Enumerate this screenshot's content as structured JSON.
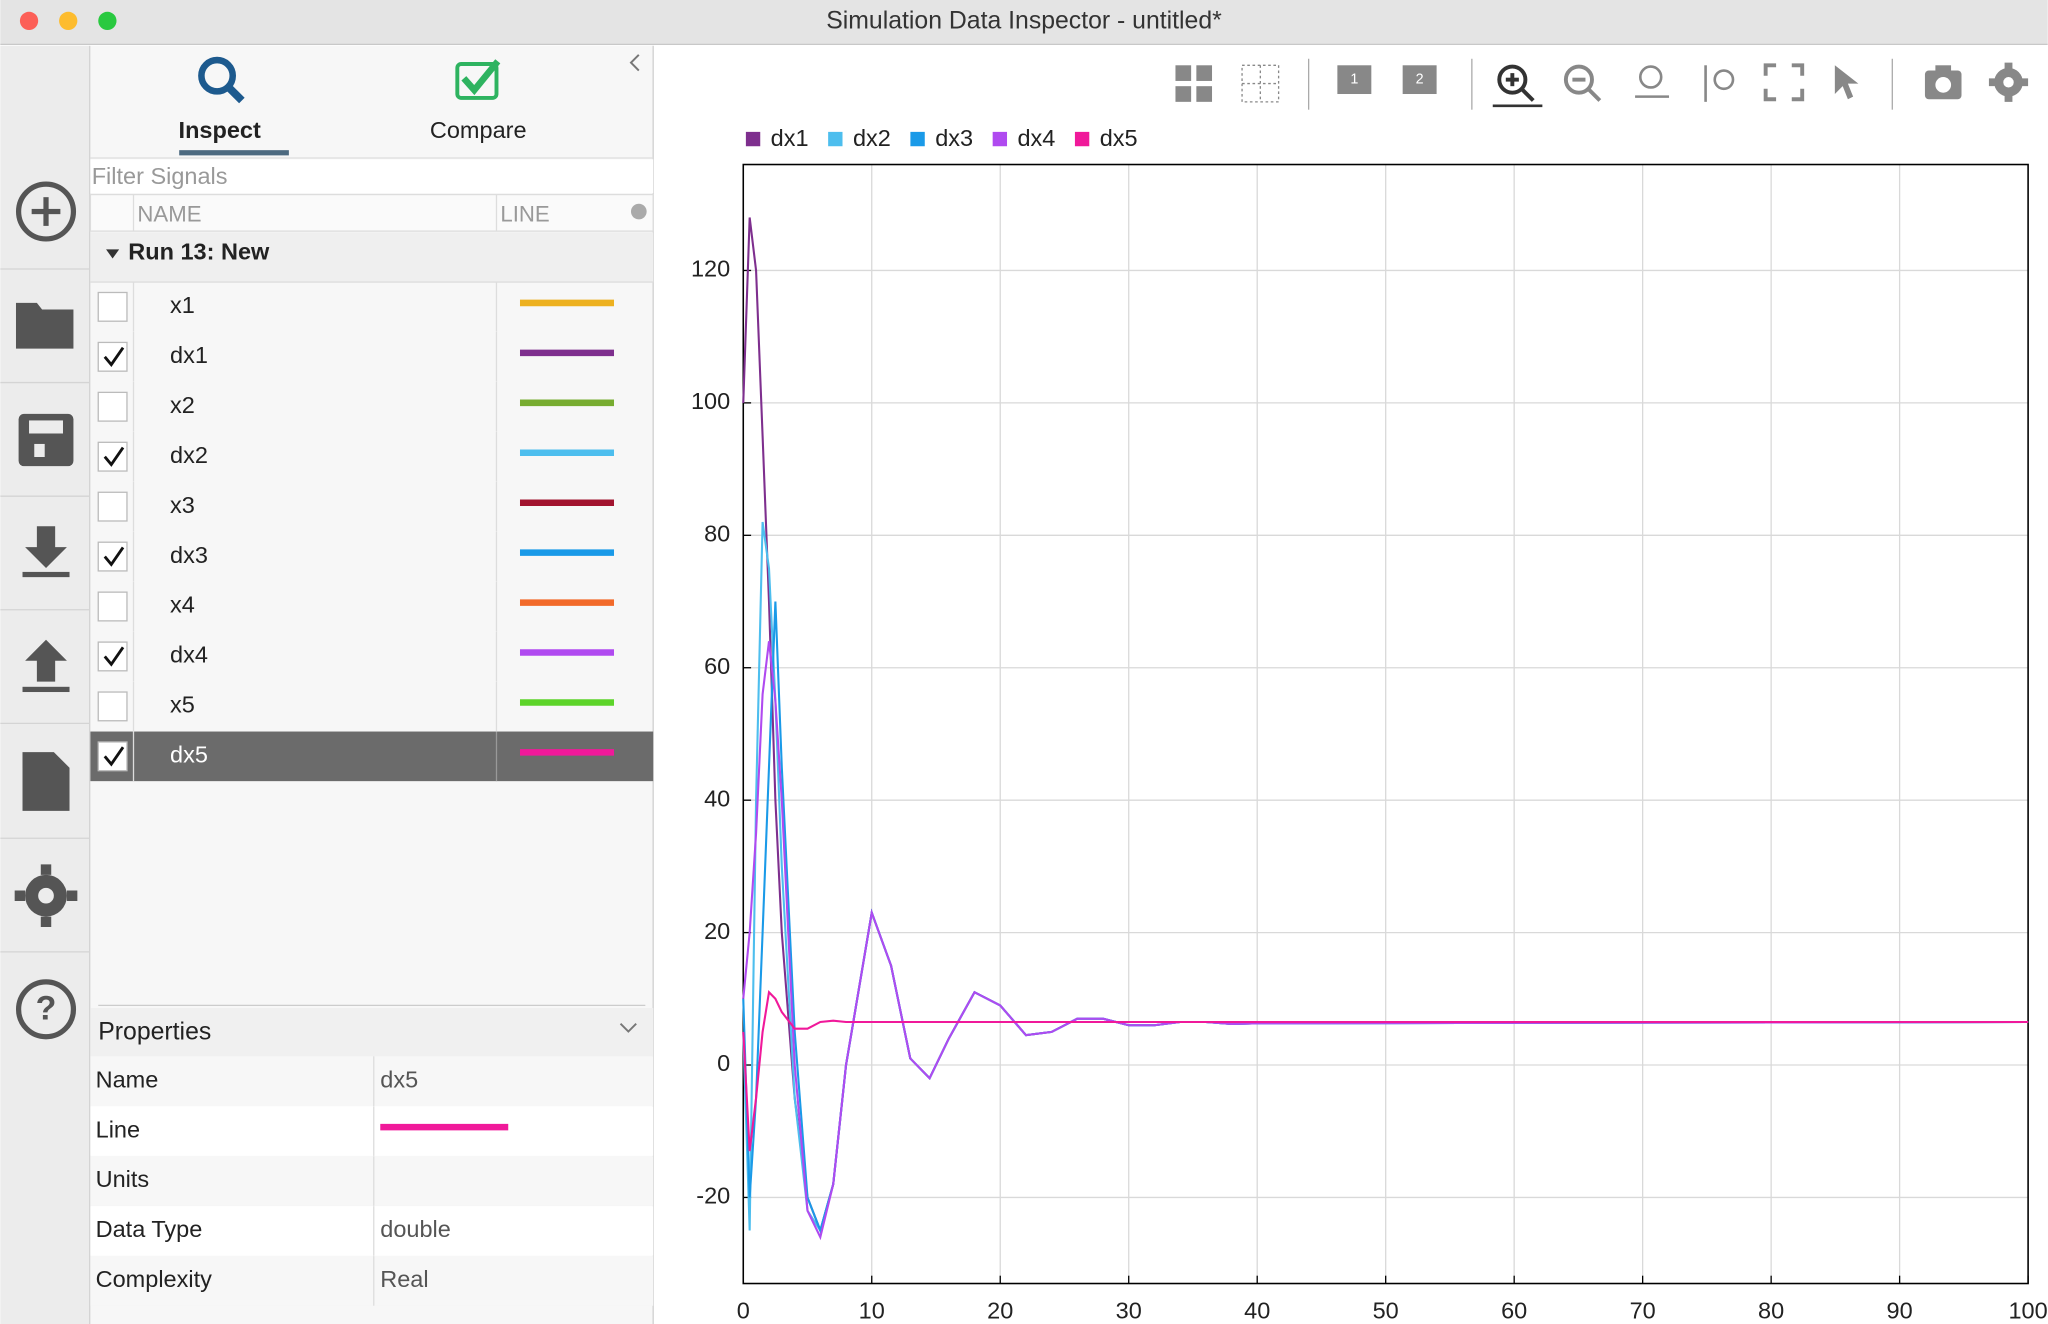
{
  "window": {
    "title": "Simulation Data Inspector - untitled*"
  },
  "tabs": [
    "Inspect",
    "Compare"
  ],
  "filter_placeholder": "Filter Signals",
  "columns": [
    "NAME",
    "LINE"
  ],
  "run": "Run 13: New",
  "signals": [
    {
      "name": "x1",
      "color": "#edb120",
      "checked": false
    },
    {
      "name": "dx1",
      "color": "#7e2f8e",
      "checked": true
    },
    {
      "name": "x2",
      "color": "#77ac30",
      "checked": false
    },
    {
      "name": "dx2",
      "color": "#4dbeee",
      "checked": true
    },
    {
      "name": "x3",
      "color": "#a2142f",
      "checked": false
    },
    {
      "name": "dx3",
      "color": "#1a9ae8",
      "checked": true
    },
    {
      "name": "x4",
      "color": "#f26a2a",
      "checked": false
    },
    {
      "name": "dx4",
      "color": "#b04af0",
      "checked": true
    },
    {
      "name": "x5",
      "color": "#5dd42a",
      "checked": false
    },
    {
      "name": "dx5",
      "color": "#f0199a",
      "checked": true,
      "selected": true
    }
  ],
  "properties": {
    "title": "Properties",
    "rows": [
      {
        "label": "Name",
        "value": "dx5"
      },
      {
        "label": "Line",
        "color": "#f0199a"
      },
      {
        "label": "Units"
      },
      {
        "label": "Data Type",
        "value": "double"
      },
      {
        "label": "Complexity",
        "value": "Real"
      }
    ]
  },
  "chart_data": {
    "type": "line",
    "x": [
      0,
      0.5,
      1,
      1.5,
      2,
      2.5,
      3,
      4,
      5,
      6,
      7,
      8,
      10,
      11.5,
      13,
      14.5,
      16,
      18,
      20,
      22,
      24,
      26,
      28,
      30,
      32,
      34,
      36,
      38,
      40,
      100
    ],
    "series": [
      {
        "name": "dx1",
        "color": "#7e2f8e",
        "values": [
          100,
          128,
          120,
          95,
          70,
          40,
          20,
          -5,
          -20,
          -25,
          -18,
          0,
          23,
          15,
          1,
          -2,
          4,
          11,
          9,
          4.5,
          5,
          7,
          7,
          6,
          6,
          6.5,
          6.5,
          6.2,
          6.3,
          6.5
        ]
      },
      {
        "name": "dx2",
        "color": "#4dbeee",
        "values": [
          5,
          -25,
          40,
          82,
          75,
          55,
          30,
          -5,
          -22,
          -25,
          -18,
          0,
          23,
          15,
          1,
          -2,
          4,
          11,
          9,
          4.5,
          5,
          7,
          7,
          6,
          6,
          6.5,
          6.5,
          6.2,
          6.3,
          6.5
        ]
      },
      {
        "name": "dx3",
        "color": "#1a9ae8",
        "values": [
          10,
          -20,
          -5,
          20,
          45,
          70,
          45,
          5,
          -20,
          -25,
          -18,
          0,
          23,
          15,
          1,
          -2,
          4,
          11,
          9,
          4.5,
          5,
          7,
          7,
          6,
          6,
          6.5,
          6.5,
          6.2,
          6.3,
          6.5
        ]
      },
      {
        "name": "dx4",
        "color": "#b04af0",
        "values": [
          10,
          20,
          35,
          56,
          64,
          55,
          40,
          0,
          -22,
          -26,
          -18,
          0,
          23,
          15,
          1,
          -2,
          4,
          11,
          9,
          4.5,
          5,
          7,
          7,
          6,
          6,
          6.5,
          6.5,
          6.2,
          6.3,
          6.5
        ]
      },
      {
        "name": "dx5",
        "color": "#f0199a",
        "values": [
          5,
          -13,
          -5,
          5,
          11,
          10,
          8,
          5.5,
          5.5,
          6.5,
          6.7,
          6.5,
          6.5,
          6.5,
          6.5,
          6.5,
          6.5,
          6.5,
          6.5,
          6.5,
          6.5,
          6.5,
          6.5,
          6.5,
          6.5,
          6.5,
          6.5,
          6.5,
          6.5,
          6.5
        ]
      }
    ],
    "xlim": [
      0,
      100
    ],
    "ylim": [
      -33,
      136
    ],
    "xticks": [
      0,
      10,
      20,
      30,
      40,
      50,
      60,
      70,
      80,
      90,
      100
    ],
    "yticks": [
      -20,
      0,
      20,
      40,
      60,
      80,
      100,
      120
    ],
    "grid": true
  }
}
